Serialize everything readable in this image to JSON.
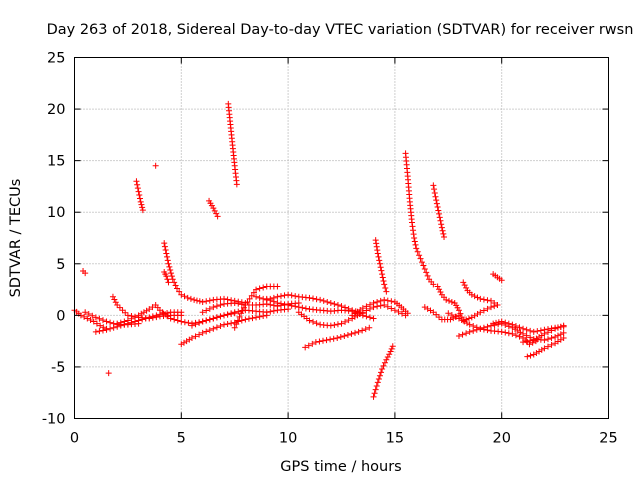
{
  "chart_data": {
    "type": "scatter",
    "title": "Day 263 of 2018, Sidereal Day-to-day VTEC variation (SDTVAR) for receiver rwsn",
    "xlabel": "GPS time / hours",
    "ylabel": "SDTVAR / TECUs",
    "xlim": [
      0,
      25
    ],
    "ylim": [
      -10,
      25
    ],
    "xticks": [
      0,
      5,
      10,
      15,
      20,
      25
    ],
    "yticks": [
      -10,
      -5,
      0,
      5,
      10,
      15,
      20,
      25
    ],
    "grid": true,
    "marker": "+",
    "color": "#ff0000",
    "tracks": [
      [
        0.0,
        0.5,
        0.3,
        0.0,
        0.6,
        -0.3,
        0.9,
        -0.6,
        1.2,
        -1.0,
        1.5,
        -1.3
      ],
      [
        0.5,
        0.3,
        1.0,
        -0.2,
        1.5,
        -0.6,
        2.0,
        -0.9,
        2.5,
        -0.9,
        3.0,
        -0.8
      ],
      [
        1.0,
        -1.6,
        1.5,
        -1.4,
        2.0,
        -1.1,
        2.5,
        -0.8,
        3.0,
        -0.5,
        3.5,
        -0.2,
        4.0,
        0.1,
        4.5,
        0.3,
        5.0,
        0.3
      ],
      [
        1.8,
        1.8,
        2.0,
        1.0,
        2.5,
        0.0,
        3.0,
        -0.2,
        3.5,
        -0.3,
        4.0,
        -0.1,
        4.5,
        0.0,
        5.0,
        0.0
      ],
      [
        2.0,
        -0.8,
        2.5,
        -0.5,
        3.0,
        0.0,
        3.5,
        0.6,
        3.8,
        1.0,
        4.0,
        0.5,
        4.5,
        -0.3,
        5.0,
        -0.6,
        5.5,
        -0.8,
        6.0,
        -0.6,
        6.5,
        -0.3,
        7.0,
        0.0,
        7.5,
        0.2
      ],
      [
        4.2,
        7.0,
        4.4,
        5.0,
        4.6,
        3.5,
        4.8,
        2.6,
        5.0,
        2.0,
        5.3,
        1.7,
        5.6,
        1.5,
        6.0,
        1.3,
        6.5,
        1.5,
        7.0,
        1.6,
        7.5,
        1.4,
        8.0,
        1.2
      ],
      [
        5.0,
        -2.8,
        5.5,
        -2.2,
        6.0,
        -1.7,
        6.5,
        -1.3,
        7.0,
        -0.9,
        7.5,
        -0.7,
        8.0,
        -0.4,
        8.5,
        -0.2,
        9.0,
        0.0
      ],
      [
        5.5,
        -1.0,
        6.0,
        -0.6,
        6.5,
        -0.3,
        7.0,
        0.0,
        7.5,
        0.3,
        8.0,
        0.5,
        8.5,
        0.4,
        9.0,
        0.3,
        9.5,
        0.5,
        10.0,
        0.6
      ],
      [
        6.0,
        0.3,
        6.5,
        0.8,
        7.0,
        1.1,
        7.5,
        1.2,
        8.0,
        1.0,
        8.5,
        1.0,
        9.0,
        1.1,
        9.5,
        0.9,
        10.0,
        1.1,
        10.5,
        1.2
      ],
      [
        7.5,
        -1.2,
        7.8,
        0.2,
        8.0,
        1.0,
        8.5,
        2.5,
        9.0,
        2.8,
        9.5,
        2.8
      ],
      [
        9.0,
        1.6,
        9.5,
        1.2,
        10.0,
        1.0,
        10.5,
        0.8,
        11.0,
        0.6,
        11.5,
        0.5,
        12.0,
        0.4,
        12.5,
        0.5,
        13.0,
        0.4,
        13.5,
        0.0,
        14.0,
        -0.3
      ],
      [
        10.5,
        0.3,
        11.0,
        -0.5,
        11.5,
        -0.9,
        12.0,
        -1.0,
        12.5,
        -0.8,
        13.0,
        -0.3,
        13.5,
        0.3,
        14.0,
        0.8,
        14.5,
        1.0,
        15.0,
        0.5,
        15.5,
        0.0
      ],
      [
        8.5,
        1.8,
        9.0,
        1.5,
        9.5,
        1.8,
        10.0,
        2.0,
        10.5,
        1.8,
        11.0,
        1.7,
        11.5,
        1.5,
        12.0,
        1.2,
        12.5,
        0.9,
        13.0,
        0.5,
        13.5,
        0.2
      ],
      [
        10.8,
        -3.1,
        11.3,
        -2.6,
        11.8,
        -2.4,
        12.3,
        -2.2,
        12.8,
        -1.9,
        13.3,
        -1.6,
        13.8,
        -1.2
      ],
      [
        13.0,
        0.0,
        13.5,
        0.7,
        14.0,
        1.2,
        14.5,
        1.5,
        15.0,
        1.3,
        15.3,
        0.8,
        15.6,
        0.2
      ],
      [
        14.1,
        7.3,
        14.2,
        6.0,
        14.3,
        5.0,
        14.4,
        4.0,
        14.5,
        3.0,
        14.6,
        2.3
      ],
      [
        14.0,
        -7.9,
        14.2,
        -6.5,
        14.4,
        -5.2,
        14.6,
        -4.3,
        14.8,
        -3.5,
        14.9,
        -3.0
      ],
      [
        15.5,
        15.7,
        15.6,
        13.5,
        15.7,
        11.0,
        15.8,
        9.0,
        15.9,
        7.5,
        16.0,
        6.5,
        16.2,
        5.5,
        16.4,
        4.5,
        16.6,
        3.5,
        16.8,
        3.0
      ],
      [
        16.8,
        12.6,
        16.9,
        11.5,
        17.0,
        10.5,
        17.1,
        9.5,
        17.2,
        8.5,
        17.3,
        7.6
      ],
      [
        17.0,
        2.8,
        17.2,
        2.0,
        17.4,
        1.5,
        17.8,
        1.2,
        18.0,
        0.5,
        18.2,
        -0.5,
        18.6,
        -0.2,
        19.0,
        0.3,
        19.5,
        0.8,
        19.8,
        1.0
      ],
      [
        16.4,
        0.8,
        16.8,
        0.3,
        17.2,
        -0.4,
        17.6,
        -0.4,
        18.0,
        0.0
      ],
      [
        17.5,
        0.2,
        18.0,
        -0.3,
        18.5,
        -0.9,
        19.0,
        -1.3,
        19.5,
        -1.5,
        20.0,
        -1.6,
        20.5,
        -1.8,
        21.0,
        -2.2,
        21.3,
        -2.8,
        21.6,
        -2.5
      ],
      [
        18.2,
        3.2,
        18.4,
        2.4,
        18.6,
        2.0,
        19.0,
        1.6,
        19.5,
        1.4,
        19.8,
        1.0
      ],
      [
        18.0,
        -2.0,
        18.5,
        -1.6,
        19.0,
        -1.3,
        19.5,
        -1.0,
        20.0,
        -0.8,
        20.5,
        -1.2,
        21.0,
        -1.8,
        21.5,
        -2.3,
        22.0,
        -2.4,
        22.5,
        -2.1,
        22.9,
        -1.7
      ],
      [
        19.6,
        -0.8,
        20.0,
        -0.6,
        20.5,
        -0.9,
        21.0,
        -1.3,
        21.5,
        -1.6,
        22.0,
        -1.4,
        22.5,
        -1.2,
        22.9,
        -1.1
      ],
      [
        21.2,
        -4.0,
        21.5,
        -3.8,
        22.0,
        -3.2,
        22.5,
        -2.7,
        22.9,
        -2.2
      ],
      [
        21.0,
        -2.6,
        21.5,
        -2.4,
        22.0,
        -1.8,
        22.5,
        -1.3,
        22.9,
        -1.0
      ],
      [
        19.6,
        4.0,
        19.8,
        3.7,
        20.0,
        3.4
      ],
      [
        2.9,
        13.0,
        3.0,
        12.0,
        3.1,
        11.0,
        3.2,
        10.2
      ],
      [
        6.3,
        11.1,
        6.5,
        10.4,
        6.7,
        9.6
      ],
      [
        7.2,
        20.5,
        7.3,
        18.5,
        7.4,
        16.5,
        7.5,
        14.5,
        7.6,
        12.7
      ],
      [
        4.2,
        4.2,
        4.3,
        3.8,
        4.4,
        3.2
      ],
      [
        0.4,
        4.3,
        0.5,
        4.1
      ],
      [
        3.8,
        14.5
      ],
      [
        1.6,
        -5.6
      ]
    ]
  }
}
